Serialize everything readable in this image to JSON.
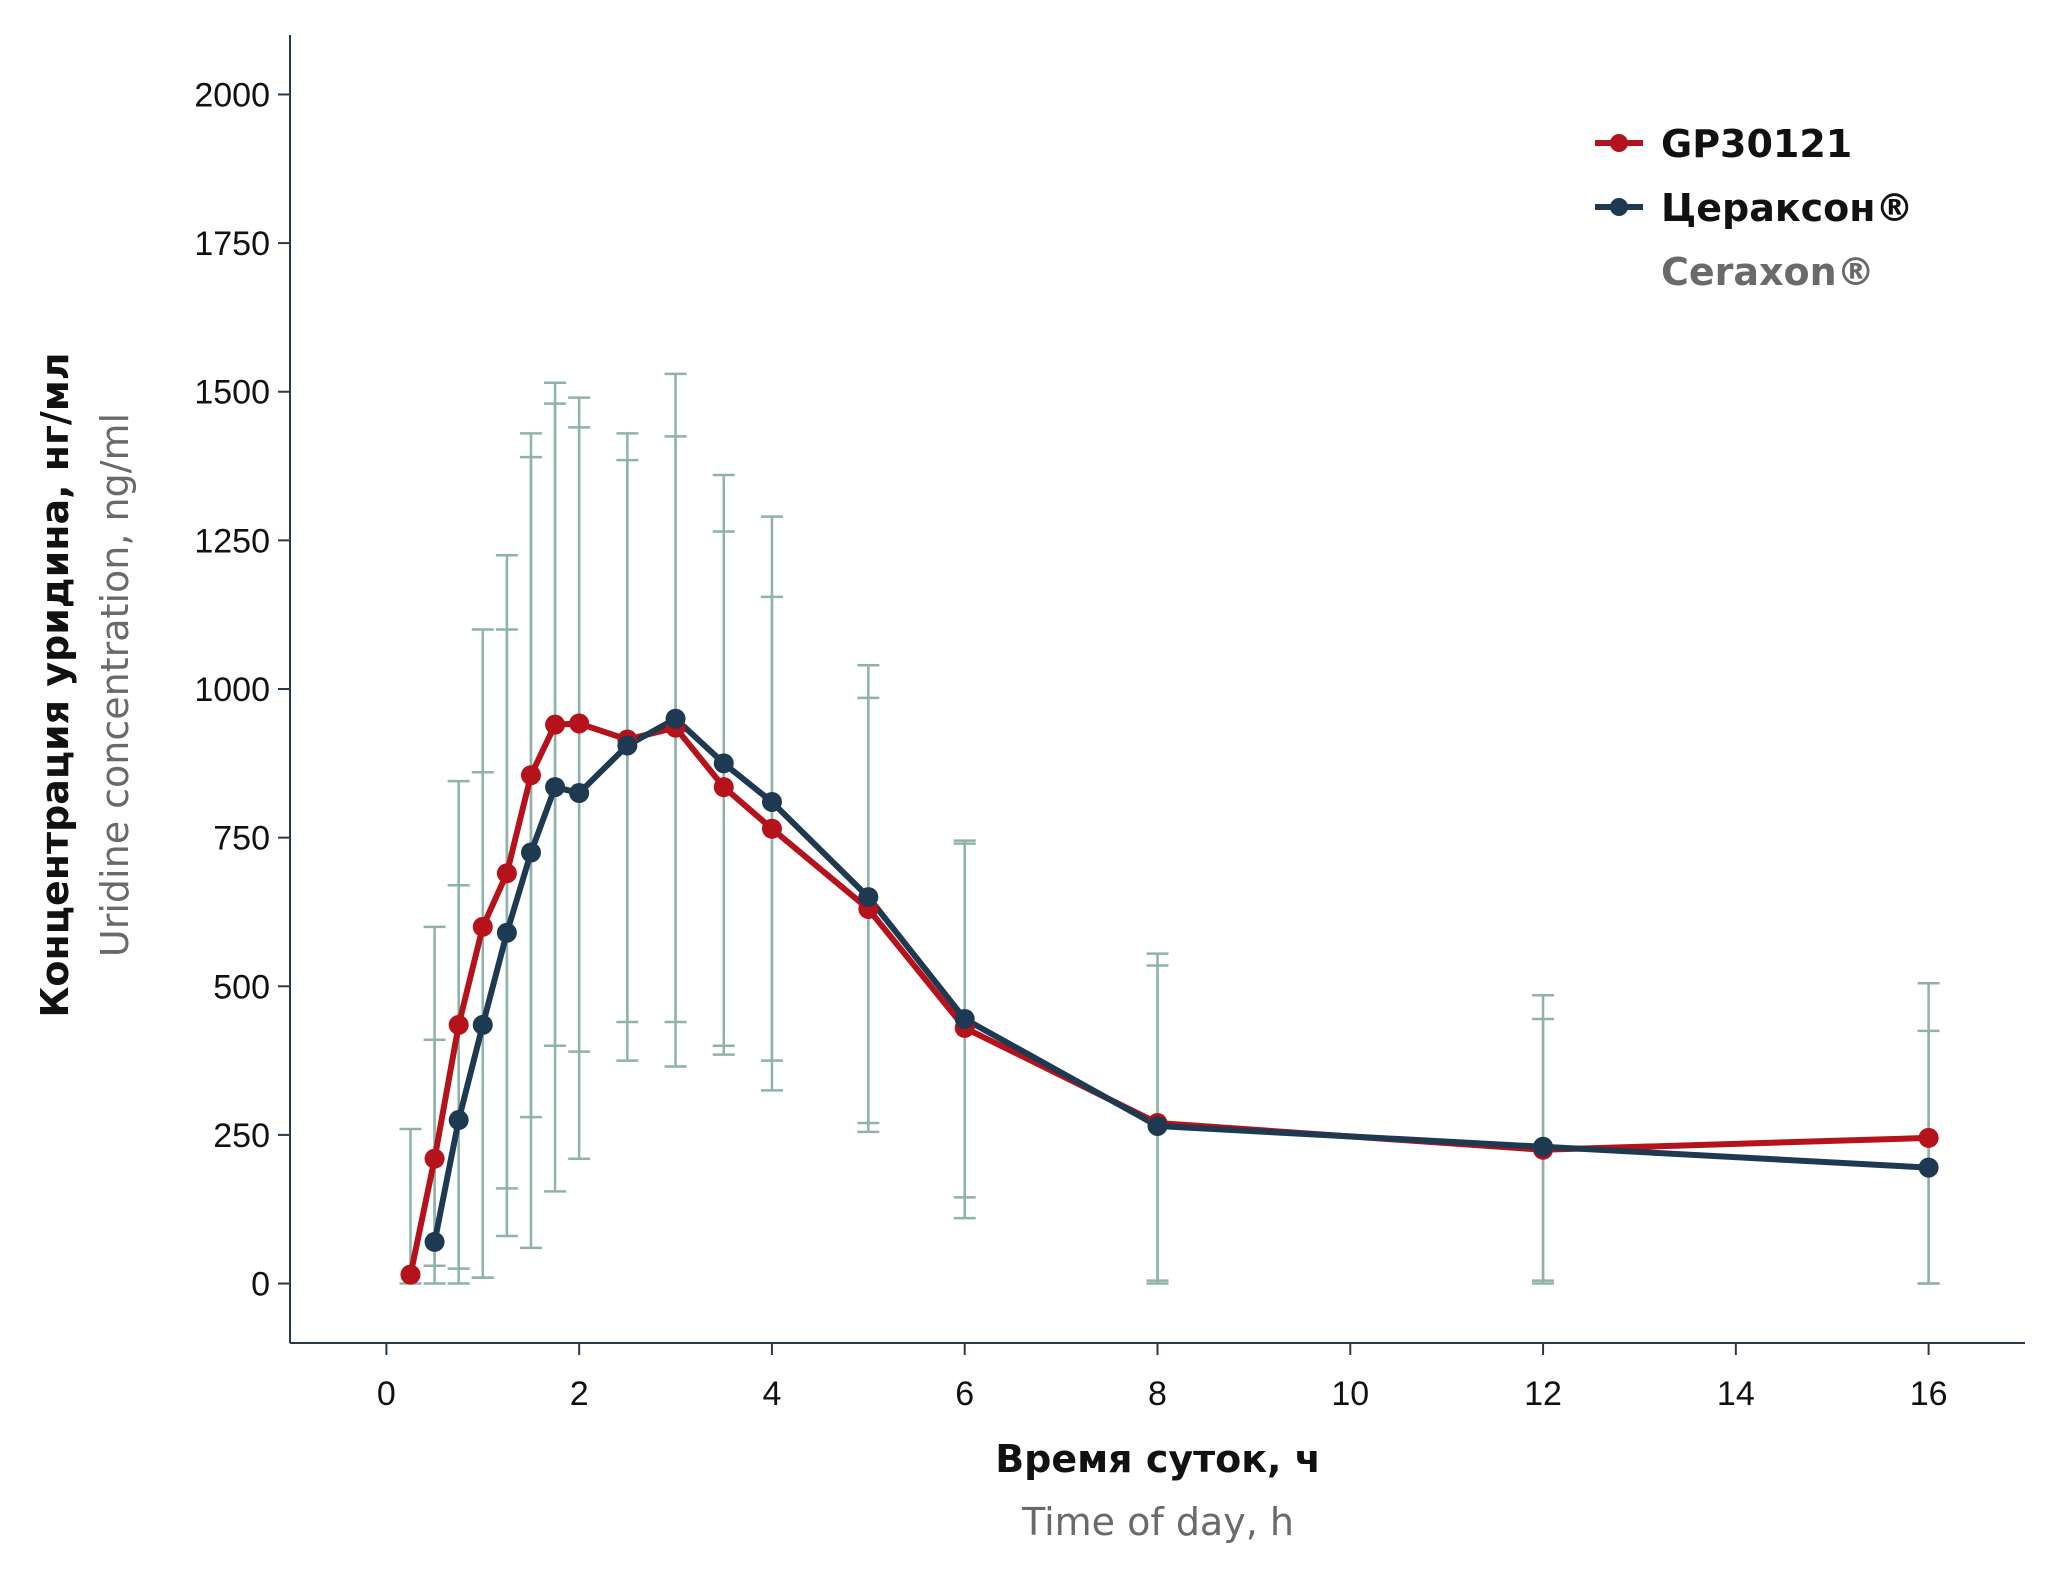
{
  "chart_data": {
    "type": "line",
    "x_axis": {
      "label_ru": "Время суток, ч",
      "label_en": "Time of day, h",
      "range": [
        -1,
        17
      ],
      "ticks": [
        0,
        2,
        4,
        6,
        8,
        10,
        12,
        14,
        16
      ],
      "tick_labels": [
        "0",
        "2",
        "4",
        "6",
        "8",
        "10",
        "12",
        "14",
        "16"
      ]
    },
    "y_axis": {
      "label_ru": "Концентрация уридина, нг/мл",
      "label_en": "Uridine concentration, ng/ml",
      "range": [
        -100,
        2100
      ],
      "ticks": [
        0,
        250,
        500,
        750,
        1000,
        1250,
        1500,
        1750,
        2000
      ],
      "tick_labels": [
        "0",
        "250",
        "500",
        "750",
        "1000",
        "1250",
        "1500",
        "1750",
        "2000"
      ]
    },
    "legend": {
      "position": "top-right",
      "entries": [
        {
          "label": "GP30121",
          "sub": ""
        },
        {
          "label": "Цераксон®",
          "sub": "Ceraxon®"
        }
      ]
    },
    "series": [
      {
        "name": "GP30121",
        "color": "#b5121b",
        "x": [
          0.25,
          0.5,
          0.75,
          1,
          1.25,
          1.5,
          1.75,
          2,
          2.5,
          3,
          3.5,
          4,
          5,
          6,
          8,
          12,
          16
        ],
        "y": [
          15,
          210,
          435,
          600,
          690,
          855,
          940,
          942,
          915,
          935,
          835,
          765,
          630,
          430,
          270,
          225,
          245
        ],
        "err_low": [
          0,
          30,
          0,
          10,
          80,
          60,
          400,
          390,
          440,
          440,
          400,
          375,
          270,
          145,
          5,
          5,
          0
        ],
        "err_high": [
          260,
          410,
          845,
          1100,
          1100,
          1390,
          1480,
          1440,
          1385,
          1530,
          1265,
          1155,
          1040,
          745,
          555,
          445,
          505
        ]
      },
      {
        "name": "Цераксон®",
        "color": "#1d3a52",
        "x": [
          0.5,
          0.75,
          1,
          1.25,
          1.5,
          1.75,
          2,
          2.5,
          3,
          3.5,
          4,
          5,
          6,
          8,
          12,
          16
        ],
        "y": [
          70,
          275,
          435,
          590,
          725,
          835,
          825,
          905,
          950,
          875,
          810,
          650,
          445,
          265,
          230,
          195
        ],
        "err_low": [
          0,
          25,
          10,
          160,
          280,
          155,
          210,
          375,
          365,
          385,
          325,
          255,
          110,
          0,
          0,
          0
        ],
        "err_high": [
          600,
          670,
          860,
          1225,
          1430,
          1515,
          1490,
          1430,
          1425,
          1360,
          1290,
          985,
          740,
          535,
          485,
          425
        ]
      }
    ]
  }
}
